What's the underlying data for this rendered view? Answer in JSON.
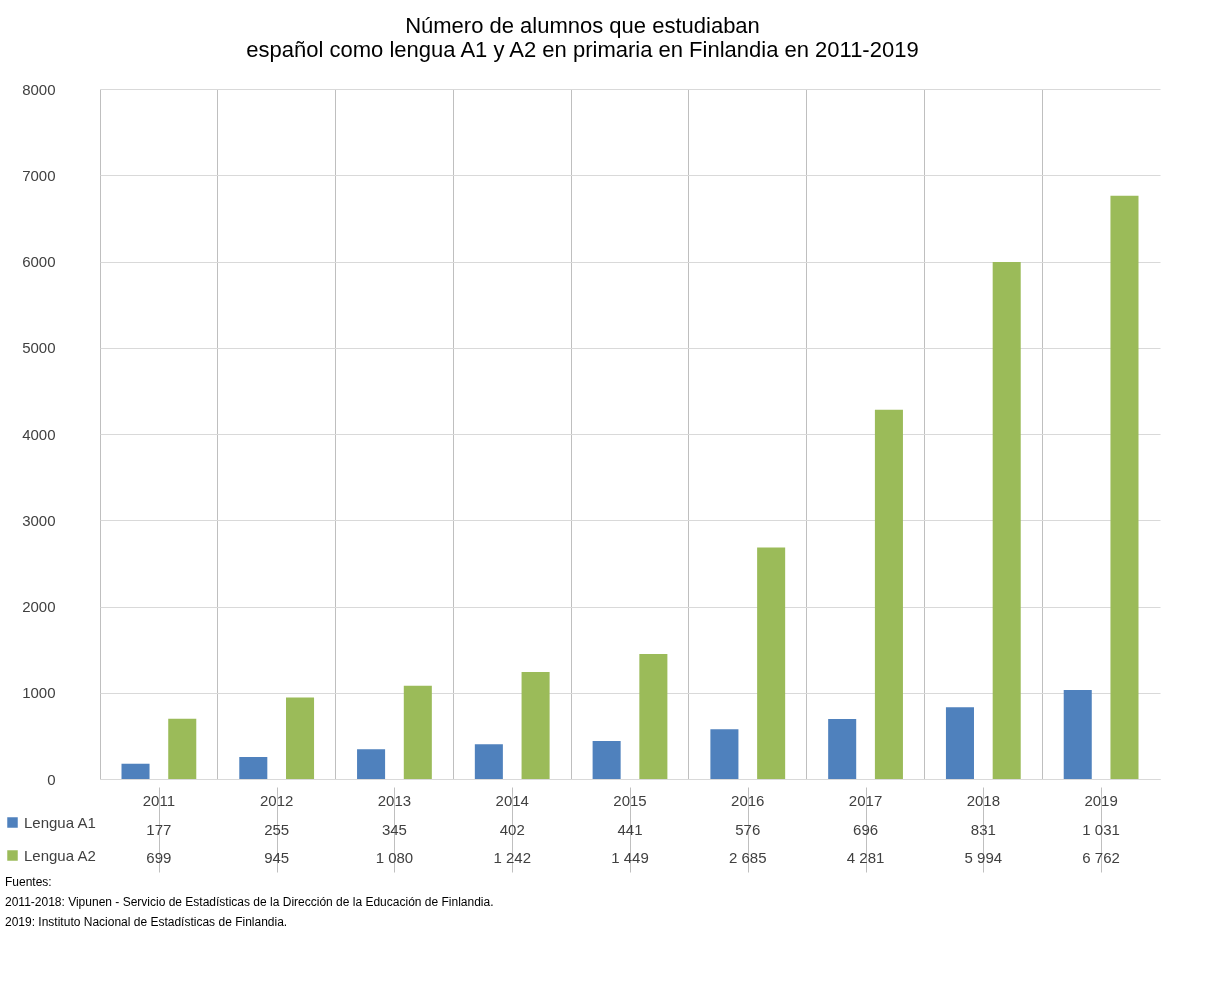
{
  "chart_data": {
    "type": "bar",
    "title": "Número de alumnos que estudiaban\nespañol como lengua A1 y A2 en primaria en Finlandia en 2011-2019",
    "categories": [
      "2011",
      "2012",
      "2013",
      "2014",
      "2015",
      "2016",
      "2017",
      "2018",
      "2019"
    ],
    "series": [
      {
        "name": "Lengua A1",
        "color": "#4f81bd",
        "values": [
          177,
          255,
          345,
          402,
          441,
          576,
          696,
          831,
          1031
        ],
        "value_labels": [
          "177",
          "255",
          "345",
          "402",
          "441",
          "576",
          "696",
          "831",
          "1 031"
        ]
      },
      {
        "name": "Lengua A2",
        "color": "#9bbb59",
        "values": [
          699,
          945,
          1080,
          1242,
          1449,
          2685,
          4281,
          5994,
          6762
        ],
        "value_labels": [
          "699",
          "945",
          "1 080",
          "1 242",
          "1 449",
          "2 685",
          "4 281",
          "5 994",
          "6 762"
        ]
      }
    ],
    "ylim": [
      0,
      8000
    ],
    "yticks": [
      0,
      1000,
      2000,
      3000,
      4000,
      5000,
      6000,
      7000,
      8000
    ],
    "grid": "y",
    "legend": "bottom left",
    "annotations": [
      "Fuentes:",
      "2011-2018: Vipunen - Servicio de Estadísticas de la Dirección de la Educación de Finlandia.",
      "2019: Instituto Nacional de Estadísticas de Finlandia."
    ]
  }
}
